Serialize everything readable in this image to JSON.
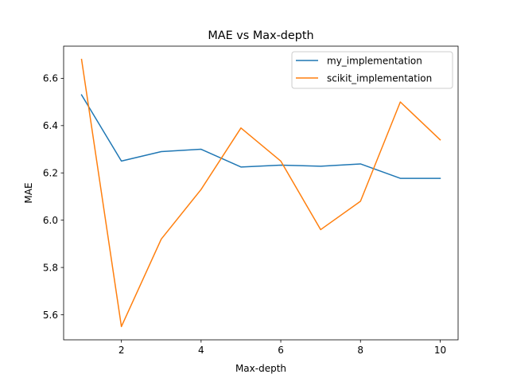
{
  "chart_data": {
    "type": "line",
    "title": "MAE vs Max-depth",
    "xlabel": "Max-depth",
    "ylabel": "MAE",
    "xlim": [
      0.55,
      10.45
    ],
    "ylim": [
      5.494,
      6.736
    ],
    "xticks": [
      2,
      4,
      6,
      8,
      10
    ],
    "yticks": [
      5.6,
      5.8,
      6.0,
      6.2,
      6.4,
      6.6
    ],
    "ytick_labels": [
      "5.6",
      "5.8",
      "6.0",
      "6.2",
      "6.4",
      "6.6"
    ],
    "grid": false,
    "legend_position": "top-right",
    "x": [
      1,
      2,
      3,
      4,
      5,
      6,
      7,
      8,
      9,
      10
    ],
    "series": [
      {
        "name": "my_implementation",
        "color": "#1f77b4",
        "values": [
          6.53,
          6.25,
          6.29,
          6.3,
          6.225,
          6.233,
          6.228,
          6.238,
          6.177,
          6.177
        ]
      },
      {
        "name": "scikit_implementation",
        "color": "#ff7f0e",
        "values": [
          6.68,
          5.55,
          5.92,
          6.13,
          6.39,
          6.25,
          5.96,
          6.08,
          6.5,
          6.34
        ]
      }
    ]
  }
}
